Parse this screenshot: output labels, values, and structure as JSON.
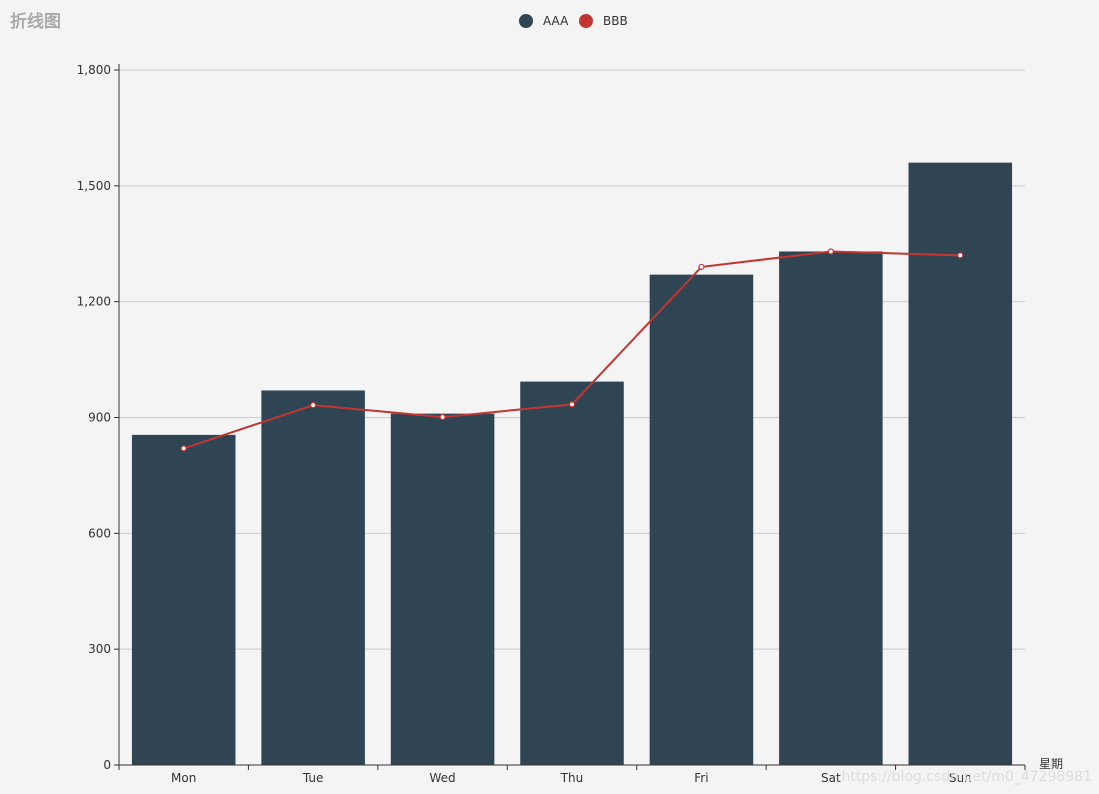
{
  "chart_data": {
    "type": "bar",
    "title": "折线图",
    "categories": [
      "Mon",
      "Tue",
      "Wed",
      "Thu",
      "Fri",
      "Sat",
      "Sun"
    ],
    "series": [
      {
        "name": "AAA",
        "type": "bar",
        "color": "#2f4554",
        "values": [
          855,
          970,
          910,
          993,
          1270,
          1330,
          1560
        ]
      },
      {
        "name": "BBB",
        "type": "line",
        "color": "#c23531",
        "values": [
          820,
          932,
          901,
          934,
          1290,
          1330,
          1320
        ]
      }
    ],
    "xlabel": "星期",
    "ylabel": "",
    "ylim": [
      0,
      1800
    ],
    "yticks": [
      0,
      300,
      600,
      900,
      1200,
      1500,
      1800
    ],
    "ytick_labels": [
      "0",
      "300",
      "600",
      "900",
      "1,200",
      "1,500",
      "1,800"
    ],
    "grid": true,
    "legend_position": "top-center"
  },
  "watermark": "https://blog.csdn.net/m0_47298981"
}
